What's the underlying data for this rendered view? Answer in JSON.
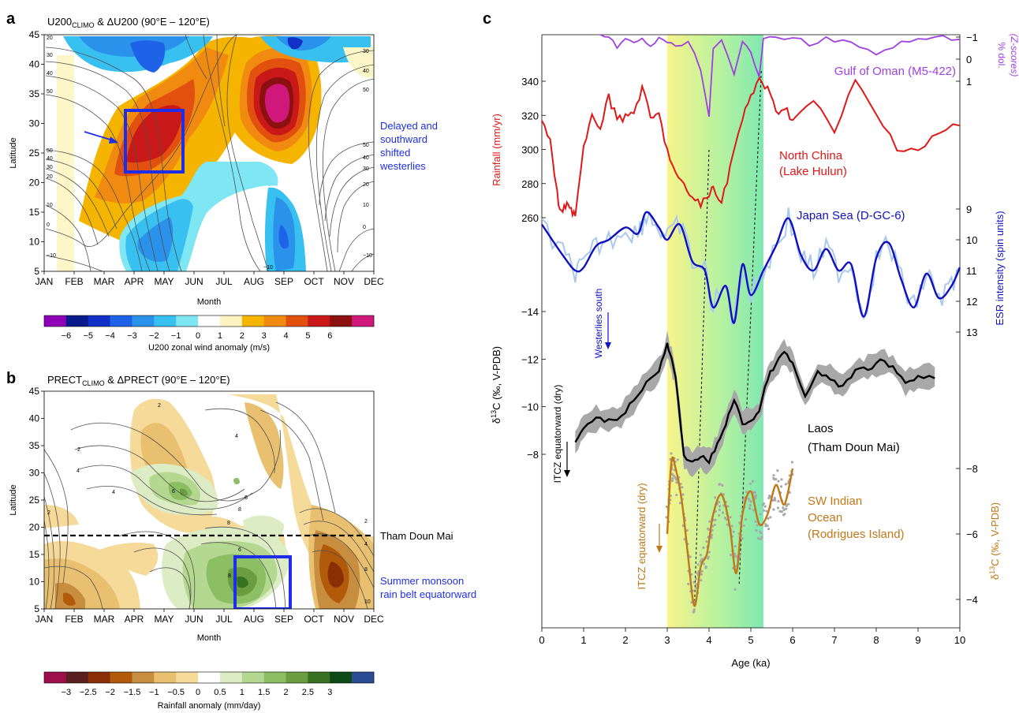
{
  "panels": {
    "a": {
      "letter": "a",
      "title_pre": "U200",
      "title_sub": "CLIMO",
      "title_post": " & ΔU200 (90°E – 120°E)",
      "xlabel": "Month",
      "ylabel": "Latitude",
      "months": [
        "JAN",
        "FEB",
        "MAR",
        "APR",
        "MAY",
        "JUN",
        "JUL",
        "AUG",
        "SEP",
        "OCT",
        "NOV",
        "DEC"
      ],
      "lat_ticks": [
        "5",
        "10",
        "15",
        "20",
        "25",
        "30",
        "35",
        "40",
        "45"
      ],
      "annotation": [
        "Delayed and",
        "southward",
        "shifted",
        "westerlies"
      ],
      "contour_labels_left": [
        "20",
        "30",
        "40",
        "50",
        "50",
        "40",
        "30",
        "20",
        "10",
        "0",
        "−10"
      ],
      "contour_labels_right": [
        "30",
        "40",
        "50",
        "50",
        "40",
        "30",
        "20",
        "10",
        "0",
        "−10"
      ],
      "contour_label_bottom": "−10",
      "colorbar_ticks": [
        "−6",
        "−5",
        "−4",
        "−3",
        "−2",
        "−1",
        "0",
        "1",
        "2",
        "3",
        "4",
        "5",
        "6"
      ],
      "colorbar_label": "U200 zonal wind anomaly (m/s)",
      "colorbar_colors": [
        "#8e00b8",
        "#0b1a8a",
        "#1030c8",
        "#1e62e8",
        "#2a92ea",
        "#38c0f0",
        "#7fe6f4",
        "#ffffff",
        "#fdf2c0",
        "#f5b400",
        "#f08a10",
        "#e25010",
        "#c81818",
        "#8c1010",
        "#d0187a"
      ]
    },
    "b": {
      "letter": "b",
      "title_pre": "PRECT",
      "title_sub": "CLIMO",
      "title_post": " & ΔPRECT (90°E – 120°E)",
      "xlabel": "Month",
      "ylabel": "Latitude",
      "months": [
        "JAN",
        "FEB",
        "MAR",
        "APR",
        "MAY",
        "JUN",
        "JUL",
        "AUG",
        "SEP",
        "OCT",
        "NOV",
        "DEC"
      ],
      "lat_ticks": [
        "5",
        "10",
        "15",
        "20",
        "25",
        "30",
        "35",
        "40",
        "45"
      ],
      "site_label": "Tham Doun Mai",
      "annotation": [
        "Summer monsoon",
        "rain belt equatorward"
      ],
      "contour_labels": [
        "2",
        "4",
        "6",
        "8",
        "2",
        "4",
        "6",
        "8",
        "2",
        "4",
        "6",
        "8",
        "10",
        "8",
        "4",
        "2"
      ],
      "colorbar_ticks": [
        "−3",
        "−2.5",
        "−2",
        "−1.5",
        "−1",
        "−0.5",
        "0",
        "0.5",
        "1",
        "1.5",
        "2",
        "2.5",
        "3"
      ],
      "colorbar_label": "Rainfall anomaly (mm/day)",
      "colorbar_colors": [
        "#9c0e4c",
        "#5a1e1e",
        "#8a2e06",
        "#b05a0a",
        "#c88e40",
        "#e8c070",
        "#f5da9a",
        "#ffffff",
        "#dcecc4",
        "#b4d890",
        "#8cbe64",
        "#6a9c40",
        "#3a7022",
        "#0e4a14",
        "#2a4c94"
      ]
    },
    "c": {
      "letter": "c",
      "xlabel": "Age (ka)",
      "x_ticks": [
        "0",
        "1",
        "2",
        "3",
        "4",
        "5",
        "6",
        "7",
        "8",
        "9",
        "10"
      ],
      "rain_ylabel": "Rainfall (mm/yr)",
      "rain_ticks": [
        "260",
        "280",
        "300",
        "320",
        "340"
      ],
      "dol_ylabel_1": "% dol.",
      "dol_ylabel_2": "(Z-scores)",
      "dol_ticks": [
        "−1",
        "0",
        "1"
      ],
      "esr_ylabel": "ESR intensity (spin units)",
      "esr_ticks": [
        "9",
        "10",
        "11",
        "12",
        "13"
      ],
      "d13c_left_ticks": [
        "−14",
        "−12",
        "−10",
        "−8"
      ],
      "d13c_right_ticks": [
        "−8",
        "−6",
        "−4"
      ],
      "labels": {
        "oman": "Gulf of Oman (M5-422)",
        "china1": "North China",
        "china2": "(Lake Hulun)",
        "japan": "Japan Sea (D-GC-6)",
        "westerlies": "Westerlies south",
        "itcz_black": "ITCZ equatorward (dry)",
        "laos1": "Laos",
        "laos2": "(Tham Doun Mai)",
        "itcz_brown": "ITCZ equatorward (dry)",
        "sw1": "SW Indian",
        "sw2": "Ocean",
        "sw3": "(Rodrigues Island)"
      },
      "colors": {
        "oman": "#a040e0",
        "china": "#e01818",
        "japan": "#1010c0",
        "japan_raw": "#a8c8ee",
        "laos": "#000000",
        "laos_band": "#a8a8a8",
        "sw": "#c07818",
        "sw_dots": "#a8a8a8"
      }
    }
  },
  "chart_data": [
    {
      "type": "heatmap",
      "title": "U200CLIMO & ΔU200 (90°E – 120°E)",
      "xlabel": "Month",
      "ylabel": "Latitude",
      "x": [
        "JAN",
        "FEB",
        "MAR",
        "APR",
        "MAY",
        "JUN",
        "JUL",
        "AUG",
        "SEP",
        "OCT",
        "NOV",
        "DEC"
      ],
      "ylim": [
        5,
        45
      ],
      "colorbar": {
        "label": "U200 zonal wind anomaly (m/s)",
        "range": [
          -6,
          6
        ]
      },
      "features": [
        {
          "sign": "positive",
          "max": 5,
          "center_month": "MAY",
          "center_lat": 28
        },
        {
          "sign": "positive",
          "max": 6,
          "center_month": "SEP",
          "center_lat": 34
        },
        {
          "sign": "negative",
          "min": -3,
          "center_month": "AUG",
          "center_lat": 20
        },
        {
          "sign": "negative",
          "min": -3,
          "center_month": "OCT",
          "center_lat": 43
        }
      ],
      "box": {
        "months": [
          "APR",
          "JUN"
        ],
        "lat": [
          21,
          33
        ]
      }
    },
    {
      "type": "heatmap",
      "title": "PRECTCLIMO & ΔPRECT (90°E – 120°E)",
      "xlabel": "Month",
      "ylabel": "Latitude",
      "x": [
        "JAN",
        "FEB",
        "MAR",
        "APR",
        "MAY",
        "JUN",
        "JUL",
        "AUG",
        "SEP",
        "OCT",
        "NOV",
        "DEC"
      ],
      "ylim": [
        5,
        45
      ],
      "colorbar": {
        "label": "Rainfall anomaly (mm/day)",
        "range": [
          -3,
          3
        ]
      },
      "site_latitude": 21.3,
      "box": {
        "months": [
          "AUG",
          "OCT"
        ],
        "lat": [
          7,
          14
        ]
      }
    },
    {
      "type": "line",
      "xlabel": "Age (ka)",
      "xlim": [
        0,
        10
      ],
      "shaded_interval": [
        3.0,
        5.3
      ],
      "series": [
        {
          "name": "Gulf of Oman (M5-422)",
          "axis": "% dol. (Z-scores)",
          "ylim": [
            -1,
            1
          ],
          "x": [
            1.4,
            1.6,
            1.8,
            2.0,
            2.2,
            2.4,
            2.6,
            2.8,
            3.0,
            3.2,
            3.5,
            3.8,
            4.0,
            4.1,
            4.3,
            4.6,
            4.8,
            5.0,
            5.2,
            5.3,
            5.6,
            6.0,
            6.4,
            6.8,
            7.2,
            7.6,
            8.0,
            8.4,
            8.8,
            9.2,
            9.6,
            10.0
          ],
          "values": [
            -1,
            -0.9,
            -0.6,
            -0.9,
            -0.7,
            -0.9,
            -0.6,
            -0.9,
            -0.8,
            -0.5,
            -0.9,
            0.5,
            2.7,
            -0.4,
            -0.8,
            0.6,
            -0.9,
            -0.4,
            0.9,
            -1,
            -0.9,
            -1,
            -0.7,
            -0.9,
            -0.8,
            -0.6,
            -0.1,
            -0.6,
            -0.8,
            -0.9,
            -1,
            -0.9
          ]
        },
        {
          "name": "North China (Lake Hulun)",
          "axis": "Rainfall (mm/yr)",
          "ylim": [
            255,
            350
          ],
          "x": [
            0,
            0.2,
            0.3,
            0.4,
            0.5,
            0.6,
            0.7,
            0.8,
            1.0,
            1.2,
            1.4,
            1.6,
            1.8,
            2.0,
            2.2,
            2.4,
            2.6,
            2.8,
            3.0,
            3.2,
            3.4,
            3.6,
            3.8,
            4.0,
            4.1,
            4.3,
            4.5,
            4.8,
            5.0,
            5.2,
            5.4,
            5.6,
            5.8,
            6.0,
            6.5,
            7.0,
            7.5,
            8.0,
            8.5,
            9.0,
            9.5,
            10.0
          ],
          "values": [
            318,
            305,
            285,
            268,
            262,
            270,
            265,
            262,
            300,
            318,
            314,
            330,
            320,
            318,
            322,
            336,
            318,
            320,
            300,
            285,
            278,
            272,
            268,
            272,
            280,
            268,
            290,
            318,
            330,
            342,
            335,
            322,
            325,
            318,
            328,
            310,
            340,
            320,
            302,
            300,
            310,
            314
          ]
        },
        {
          "name": "Japan Sea (D-GC-6)",
          "axis": "ESR intensity (spin units)",
          "ylim": [
            8.4,
            13.6
          ],
          "x": [
            0,
            0.5,
            0.8,
            1.0,
            1.3,
            1.6,
            2.0,
            2.3,
            2.5,
            2.8,
            3.0,
            3.3,
            3.6,
            3.9,
            4.1,
            4.4,
            4.6,
            4.8,
            5.0,
            5.3,
            5.6,
            5.9,
            6.2,
            6.5,
            6.8,
            7.1,
            7.4,
            7.7,
            8.0,
            8.3,
            8.6,
            8.9,
            9.2,
            9.5,
            9.8,
            10.0
          ],
          "values": [
            9.5,
            10.5,
            11.0,
            10.9,
            10.2,
            10.0,
            9.6,
            9.8,
            9.1,
            9.6,
            10.0,
            9.5,
            10.7,
            11.0,
            12.2,
            11.5,
            12.7,
            10.8,
            11.8,
            11.0,
            10.2,
            9.3,
            10.5,
            11.0,
            10.3,
            11.0,
            10.8,
            12.5,
            10.6,
            10.1,
            11.3,
            12.2,
            11.1,
            11.9,
            11.5,
            10.9
          ]
        },
        {
          "name": "Laos (Tham Doun Mai)",
          "axis": "δ13C (‰, V-PDB)",
          "ylim": [
            -7,
            -14.8
          ],
          "x": [
            0.8,
            1.0,
            1.3,
            1.6,
            1.9,
            2.2,
            2.5,
            2.8,
            3.0,
            3.1,
            3.2,
            3.4,
            3.6,
            3.8,
            4.0,
            4.2,
            4.4,
            4.6,
            4.8,
            5.0,
            5.2,
            5.4,
            5.6,
            5.8,
            6.0,
            6.3,
            6.6,
            6.9,
            7.2,
            7.5,
            7.8,
            8.1,
            8.4,
            8.7,
            9.0,
            9.4
          ],
          "values": [
            -8.5,
            -9.1,
            -9.5,
            -9.4,
            -9.6,
            -10.3,
            -11.0,
            -11.5,
            -12.6,
            -12.0,
            -11.2,
            -8.0,
            -7.6,
            -7.9,
            -7.7,
            -8.4,
            -9.3,
            -10.3,
            -9.3,
            -9.4,
            -9.8,
            -11.2,
            -11.8,
            -12.3,
            -11.8,
            -10.4,
            -11.4,
            -11.2,
            -10.8,
            -11.5,
            -11.6,
            -11.9,
            -11.7,
            -11.0,
            -11.3,
            -11.2
          ]
        },
        {
          "name": "SW Indian Ocean (Rodrigues Island)",
          "axis": "δ13C (‰, V-PDB)",
          "ylim": [
            -3.6,
            -8.9
          ],
          "x": [
            3.0,
            3.1,
            3.2,
            3.35,
            3.5,
            3.65,
            3.8,
            3.95,
            4.1,
            4.3,
            4.5,
            4.65,
            4.8,
            5.0,
            5.2,
            5.4,
            5.6,
            5.8,
            6.0
          ],
          "values": [
            -6.0,
            -8.2,
            -8.0,
            -7.0,
            -5.3,
            -3.8,
            -5.0,
            -5.4,
            -6.6,
            -7.2,
            -6.2,
            -4.8,
            -6.6,
            -7.3,
            -6.3,
            -6.6,
            -7.5,
            -6.9,
            -8.0
          ]
        }
      ]
    }
  ]
}
